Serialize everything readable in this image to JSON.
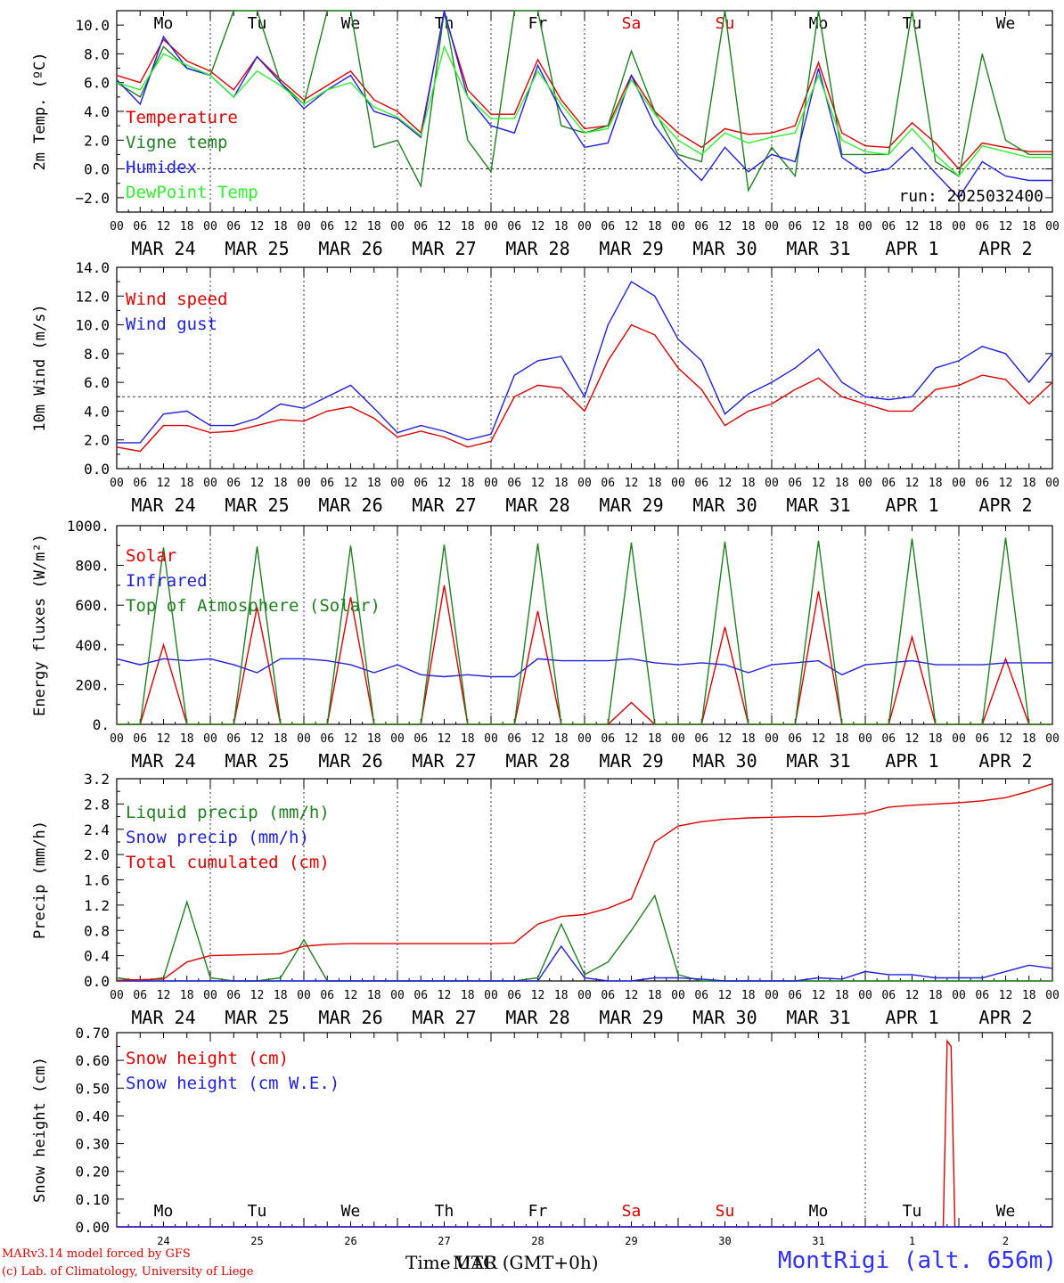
{
  "time_axis": {
    "hour_ticks": [
      "00",
      "06",
      "12",
      "18"
    ],
    "final_tick": "00",
    "date_labels": [
      "MAR 24",
      "MAR 25",
      "MAR 26",
      "MAR 27",
      "MAR 28",
      "MAR 29",
      "MAR 30",
      "MAR 31",
      "APR  1",
      "APR  2"
    ],
    "weekday_labels": [
      "Mo",
      "Tu",
      "We",
      "Th",
      "Fr",
      "Sa",
      "Su",
      "Mo",
      "Tu",
      "We"
    ],
    "weekend_color": "#e00000",
    "snow_panel_day_numbers": [
      "24",
      "25",
      "26",
      "27",
      "28",
      "29",
      "30",
      "31",
      "1",
      "2"
    ]
  },
  "footer": {
    "credit_line1": "MARv3.14 model forced by GFS",
    "credit_line2": "(c) Lab. of Climatology, University of Liege",
    "x_title": "Time UTC (GMT+0h)",
    "x_title_overlay": "MAR",
    "station": "MontRigi (alt. 656m)"
  },
  "chart_data": [
    {
      "type": "line",
      "ylabel": "2m Temp. (ºC)",
      "ylim": [
        -3.0,
        11.0
      ],
      "yticks": [
        -2.0,
        0.0,
        2.0,
        4.0,
        6.0,
        8.0,
        10.0
      ],
      "ytick_labels": [
        "−2.0",
        "0.0",
        "2.0",
        "4.0",
        "6.0",
        "8.0",
        "10.0"
      ],
      "reference_line": 0.0,
      "annotation": "run: 2025032400",
      "x_hours_from_MAR24_00": [
        0,
        6,
        12,
        18,
        24,
        30,
        36,
        42,
        48,
        54,
        60,
        66,
        72,
        78,
        84,
        90,
        96,
        102,
        108,
        114,
        120,
        126,
        132,
        138,
        144,
        150,
        156,
        162,
        168,
        174,
        180,
        186,
        192,
        198,
        204,
        210,
        216,
        222,
        228,
        234,
        240
      ],
      "series": [
        {
          "name": "Temperature",
          "color": "#e00000",
          "values": [
            6.5,
            6.0,
            9.0,
            7.5,
            6.8,
            5.5,
            7.8,
            6.2,
            4.8,
            5.8,
            6.8,
            4.8,
            4.0,
            2.5,
            10.8,
            5.5,
            3.8,
            3.8,
            7.6,
            4.8,
            2.8,
            3.0,
            6.5,
            4.0,
            2.5,
            1.5,
            2.8,
            2.4,
            2.5,
            3.0,
            7.4,
            2.5,
            1.6,
            1.5,
            3.2,
            1.8,
            0.0,
            1.8,
            1.5,
            1.2,
            1.2
          ]
        },
        {
          "name": "Vigne temp",
          "color": "#208020",
          "values": [
            6.0,
            5.0,
            8.5,
            7.0,
            6.5,
            11.0,
            11.0,
            6.0,
            4.5,
            11.0,
            11.0,
            1.5,
            2.0,
            -1.2,
            11.0,
            2.0,
            -0.2,
            11.0,
            11.0,
            3.0,
            2.5,
            3.0,
            8.2,
            4.0,
            1.0,
            0.5,
            11.0,
            -1.5,
            1.5,
            -0.5,
            11.0,
            1.0,
            1.0,
            1.0,
            11.0,
            0.5,
            -0.5,
            8.0,
            2.0,
            1.0,
            1.0
          ]
        },
        {
          "name": "Humidex",
          "color": "#2020e0",
          "values": [
            6.2,
            4.5,
            9.2,
            7.0,
            6.5,
            5.0,
            7.8,
            6.0,
            4.2,
            5.5,
            6.5,
            4.0,
            3.5,
            2.2,
            11.0,
            5.0,
            3.0,
            2.5,
            7.2,
            4.0,
            1.5,
            1.8,
            6.5,
            3.0,
            0.8,
            -0.8,
            1.5,
            -0.2,
            1.0,
            0.5,
            7.0,
            0.8,
            -0.3,
            0.0,
            1.5,
            -0.3,
            -2.0,
            0.5,
            -0.5,
            -0.8,
            -0.8
          ]
        },
        {
          "name": "DewPoint Temp",
          "color": "#30f030",
          "values": [
            6.0,
            5.5,
            8.0,
            7.2,
            6.5,
            5.0,
            6.8,
            5.8,
            4.5,
            5.5,
            6.0,
            4.3,
            3.6,
            2.3,
            8.5,
            5.0,
            3.5,
            3.5,
            6.8,
            4.5,
            2.5,
            2.8,
            6.2,
            3.8,
            2.0,
            1.0,
            2.5,
            1.8,
            2.2,
            2.5,
            6.5,
            2.0,
            1.2,
            1.0,
            2.8,
            1.0,
            -0.5,
            1.6,
            1.2,
            0.8,
            0.8
          ]
        }
      ]
    },
    {
      "type": "line",
      "ylabel": "10m Wind (m/s)",
      "ylim": [
        0,
        14
      ],
      "yticks": [
        0,
        2,
        4,
        6,
        8,
        10,
        12,
        14
      ],
      "ytick_labels": [
        "0.0",
        "2.0",
        "4.0",
        "6.0",
        "8.0",
        "10.0",
        "12.0",
        "14.0"
      ],
      "reference_line": 5.0,
      "x_hours_from_MAR24_00": [
        0,
        6,
        12,
        18,
        24,
        30,
        36,
        42,
        48,
        54,
        60,
        66,
        72,
        78,
        84,
        90,
        96,
        102,
        108,
        114,
        120,
        126,
        132,
        138,
        144,
        150,
        156,
        162,
        168,
        174,
        180,
        186,
        192,
        198,
        204,
        210,
        216,
        222,
        228,
        234,
        240
      ],
      "series": [
        {
          "name": "Wind speed",
          "color": "#e00000",
          "values": [
            1.5,
            1.2,
            3.0,
            3.0,
            2.5,
            2.6,
            3.0,
            3.4,
            3.3,
            4.0,
            4.3,
            3.5,
            2.2,
            2.6,
            2.2,
            1.5,
            1.9,
            5.0,
            5.8,
            5.6,
            4.0,
            7.5,
            10.0,
            9.3,
            7.0,
            5.5,
            3.0,
            4.0,
            4.5,
            5.5,
            6.3,
            5.0,
            4.5,
            4.0,
            4.0,
            5.5,
            5.8,
            6.5,
            6.2,
            4.5,
            6.0
          ]
        },
        {
          "name": "Wind gust",
          "color": "#2020e0",
          "values": [
            1.8,
            1.8,
            3.8,
            4.0,
            3.0,
            3.0,
            3.5,
            4.5,
            4.2,
            5.0,
            5.8,
            4.2,
            2.5,
            3.0,
            2.6,
            2.0,
            2.4,
            6.5,
            7.5,
            7.8,
            5.0,
            10.0,
            13.0,
            12.0,
            9.0,
            7.5,
            3.8,
            5.2,
            6.0,
            7.0,
            8.3,
            6.0,
            5.0,
            4.8,
            5.0,
            7.0,
            7.5,
            8.5,
            8.0,
            6.0,
            8.0
          ]
        }
      ]
    },
    {
      "type": "line",
      "ylabel": "Energy fluxes (W/m²)",
      "ylim": [
        0,
        1000
      ],
      "yticks": [
        0,
        200,
        400,
        600,
        800,
        1000
      ],
      "ytick_labels": [
        "0.",
        "200.",
        "400.",
        "600.",
        "800.",
        "1000."
      ],
      "x_hours_from_MAR24_00": [
        0,
        6,
        12,
        18,
        24,
        30,
        36,
        42,
        48,
        54,
        60,
        66,
        72,
        78,
        84,
        90,
        96,
        102,
        108,
        114,
        120,
        126,
        132,
        138,
        144,
        150,
        156,
        162,
        168,
        174,
        180,
        186,
        192,
        198,
        204,
        210,
        216,
        222,
        228,
        234,
        240
      ],
      "series": [
        {
          "name": "Solar",
          "color": "#e00000",
          "values": [
            0,
            0,
            400,
            0,
            0,
            0,
            590,
            0,
            0,
            0,
            640,
            0,
            0,
            0,
            700,
            0,
            0,
            0,
            570,
            0,
            0,
            0,
            110,
            0,
            0,
            0,
            490,
            0,
            0,
            0,
            670,
            0,
            0,
            0,
            440,
            0,
            0,
            0,
            330,
            0,
            0
          ]
        },
        {
          "name": "Infrared",
          "color": "#2020e0",
          "values": [
            330,
            300,
            330,
            320,
            330,
            300,
            260,
            330,
            330,
            320,
            300,
            260,
            300,
            250,
            240,
            250,
            240,
            240,
            330,
            320,
            320,
            320,
            330,
            310,
            300,
            310,
            300,
            260,
            300,
            310,
            320,
            250,
            300,
            310,
            320,
            300,
            300,
            300,
            310,
            310,
            310
          ]
        },
        {
          "name": "Top of Atmosphere (Solar)",
          "color": "#208020",
          "values": [
            0,
            0,
            890,
            0,
            0,
            0,
            895,
            0,
            0,
            0,
            900,
            0,
            0,
            0,
            905,
            0,
            0,
            0,
            910,
            0,
            0,
            0,
            915,
            0,
            0,
            0,
            920,
            0,
            0,
            0,
            925,
            0,
            0,
            0,
            935,
            0,
            0,
            0,
            940,
            0,
            0
          ]
        }
      ]
    },
    {
      "type": "line",
      "ylabel": "Precip (mm/h)",
      "ylim": [
        0,
        3.2
      ],
      "yticks": [
        0,
        0.4,
        0.8,
        1.2,
        1.6,
        2.0,
        2.4,
        2.8,
        3.2
      ],
      "ytick_labels": [
        "0.0",
        "0.4",
        "0.8",
        "1.2",
        "1.6",
        "2.0",
        "2.4",
        "2.8",
        "3.2"
      ],
      "x_hours_from_MAR24_00": [
        0,
        6,
        12,
        18,
        24,
        30,
        36,
        42,
        48,
        54,
        60,
        66,
        72,
        78,
        84,
        90,
        96,
        102,
        108,
        114,
        120,
        126,
        132,
        138,
        144,
        150,
        156,
        162,
        168,
        174,
        180,
        186,
        192,
        198,
        204,
        210,
        216,
        222,
        228,
        234,
        240
      ],
      "series": [
        {
          "name": "Liquid precip (mm/h)",
          "color": "#208020",
          "values": [
            0.05,
            0,
            0.05,
            1.25,
            0.05,
            0,
            0,
            0.05,
            0.65,
            0,
            0,
            0,
            0,
            0,
            0,
            0,
            0,
            0,
            0.05,
            0.9,
            0.1,
            0.3,
            0.8,
            1.35,
            0.1,
            0,
            0,
            0,
            0,
            0,
            0,
            0,
            0,
            0,
            0,
            0,
            0,
            0,
            0,
            0,
            0
          ]
        },
        {
          "name": "Snow precip (mm/h)",
          "color": "#2020e0",
          "values": [
            0,
            0,
            0,
            0,
            0,
            0,
            0,
            0,
            0,
            0,
            0,
            0,
            0,
            0,
            0,
            0,
            0,
            0,
            0,
            0.55,
            0.05,
            0,
            0,
            0.05,
            0.05,
            0.03,
            0,
            0,
            0,
            0,
            0.05,
            0.03,
            0.15,
            0.1,
            0.1,
            0.05,
            0.05,
            0.05,
            0.15,
            0.25,
            0.2
          ]
        },
        {
          "name": "Total cumulated (cm)",
          "color": "#e00000",
          "values": [
            0.01,
            0.02,
            0.03,
            0.3,
            0.4,
            0.41,
            0.42,
            0.43,
            0.55,
            0.58,
            0.59,
            0.59,
            0.59,
            0.59,
            0.59,
            0.59,
            0.59,
            0.6,
            0.9,
            1.02,
            1.05,
            1.15,
            1.3,
            2.2,
            2.45,
            2.52,
            2.56,
            2.58,
            2.59,
            2.6,
            2.6,
            2.62,
            2.65,
            2.75,
            2.78,
            2.8,
            2.82,
            2.85,
            2.9,
            3.0,
            3.12
          ]
        }
      ]
    },
    {
      "type": "line",
      "ylabel": "Snow height (cm)",
      "ylim": [
        0,
        0.7
      ],
      "yticks": [
        0,
        0.1,
        0.2,
        0.3,
        0.4,
        0.5,
        0.6,
        0.7
      ],
      "ytick_labels": [
        "0.00",
        "0.10",
        "0.20",
        "0.30",
        "0.40",
        "0.50",
        "0.60",
        "0.70"
      ],
      "x_hours_from_MAR24_00": [
        0,
        212,
        213,
        214,
        215,
        216,
        240
      ],
      "series": [
        {
          "name": "Snow height (cm)",
          "color": "#e00000",
          "values": [
            0,
            0,
            0.67,
            0.65,
            0,
            0,
            0
          ]
        },
        {
          "name": "Snow height (cm W.E.)",
          "color": "#2020e0",
          "values": [
            0,
            0,
            0,
            0,
            0,
            0,
            0
          ]
        }
      ]
    }
  ]
}
